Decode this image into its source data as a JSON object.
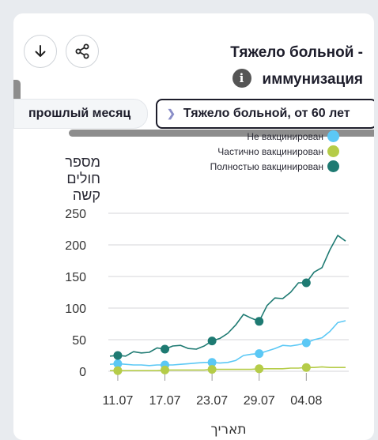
{
  "header": {
    "title_line1": "Тяжело больной -",
    "title_line2": "иммунизация",
    "download_icon": "download-icon",
    "share_icon": "share-icon",
    "info_icon": "info-icon"
  },
  "filters": {
    "previous_label": "прошлый месяц",
    "selected_label": "Тяжело больной, от 60 лет"
  },
  "chart_data": {
    "type": "line",
    "ylabel_lines": [
      "מספר",
      "חולים",
      "קשה"
    ],
    "xlabel": "תאריך",
    "x_ticks": [
      "11.07",
      "17.07",
      "23.07",
      "29.07",
      "04.08"
    ],
    "y_ticks": [
      0,
      50,
      100,
      150,
      200,
      250
    ],
    "ylim": [
      0,
      250
    ],
    "grid": true,
    "legend_position": "top-right",
    "x": [
      "10.07",
      "11.07",
      "12.07",
      "13.07",
      "14.07",
      "15.07",
      "16.07",
      "17.07",
      "18.07",
      "19.07",
      "20.07",
      "21.07",
      "22.07",
      "23.07",
      "24.07",
      "25.07",
      "26.07",
      "27.07",
      "28.07",
      "29.07",
      "30.07",
      "31.07",
      "01.08",
      "02.08",
      "03.08",
      "04.08",
      "05.08",
      "06.08",
      "07.08",
      "08.08",
      "09.08"
    ],
    "marker_dates": [
      "11.07",
      "17.07",
      "23.07",
      "29.07",
      "04.08"
    ],
    "series": [
      {
        "name": "Не вакцинирован",
        "color": "#5bc8f5",
        "values": [
          11,
          12,
          11,
          10,
          10,
          9,
          10,
          10,
          10,
          11,
          12,
          13,
          14,
          14,
          13,
          14,
          17,
          25,
          27,
          28,
          32,
          36,
          41,
          40,
          42,
          45,
          50,
          53,
          63,
          77,
          80
        ]
      },
      {
        "name": "Частично вакцинирован",
        "color": "#b5cc48",
        "values": [
          1,
          1,
          1,
          1,
          1,
          1,
          1,
          2,
          2,
          2,
          2,
          2,
          2,
          3,
          3,
          3,
          3,
          3,
          3,
          4,
          4,
          4,
          4,
          5,
          5,
          6,
          6,
          7,
          6,
          6,
          6
        ]
      },
      {
        "name": "Полностью вакцинирован",
        "color": "#1e7a72",
        "values": [
          24,
          25,
          24,
          31,
          29,
          30,
          37,
          35,
          40,
          41,
          36,
          35,
          40,
          48,
          52,
          60,
          73,
          90,
          84,
          79,
          104,
          116,
          115,
          125,
          140,
          140,
          157,
          164,
          192,
          215,
          206
        ]
      }
    ]
  }
}
